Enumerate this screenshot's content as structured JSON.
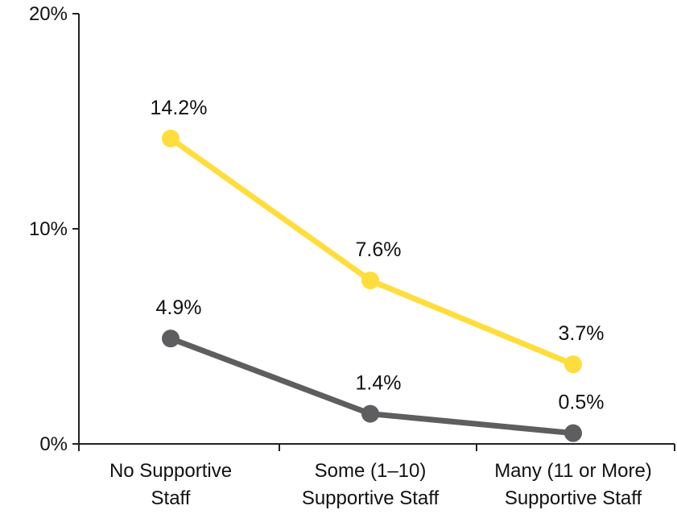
{
  "chart_data": {
    "type": "line",
    "title": "",
    "xlabel": "",
    "ylabel": "",
    "ylim": [
      0,
      20
    ],
    "y_ticks": [
      {
        "value": 0,
        "label": "0%"
      },
      {
        "value": 10,
        "label": "10%"
      },
      {
        "value": 20,
        "label": "20%"
      }
    ],
    "categories": [
      [
        "No Supportive",
        "Staff"
      ],
      [
        "Some (1–10)",
        "Supportive Staff"
      ],
      [
        "Many (11 or More)",
        "Supportive Staff"
      ]
    ],
    "series": [
      {
        "values": [
          14.2,
          7.6,
          3.7
        ],
        "labels": [
          "14.2%",
          "7.6%",
          "3.7%"
        ],
        "color": "#FFDD3C"
      },
      {
        "values": [
          4.9,
          1.4,
          0.5
        ],
        "labels": [
          "4.9%",
          "1.4%",
          "0.5%"
        ],
        "color": "#5E5E60"
      }
    ],
    "axis_color": "#222222",
    "grid": false,
    "legend": "none"
  }
}
